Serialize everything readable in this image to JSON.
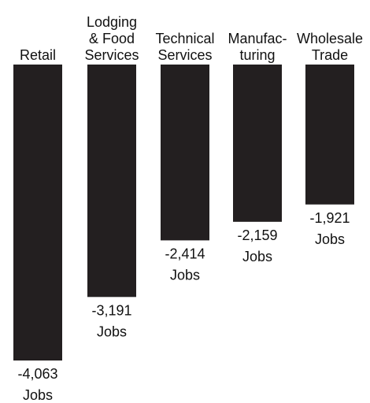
{
  "chart_data": {
    "type": "bar",
    "orientation": "vertical",
    "direction": "downward",
    "categories": [
      [
        "Retail"
      ],
      [
        "Lodging",
        "& Food",
        "Services"
      ],
      [
        "Technical",
        "Services"
      ],
      [
        "Manufac-",
        "turing"
      ],
      [
        "Wholesale",
        "Trade"
      ]
    ],
    "values": [
      -4063,
      -3191,
      -2414,
      -2159,
      -1921
    ],
    "value_labels": [
      "-4,063",
      "-3,191",
      "-2,414",
      "-2,159",
      "-1,921"
    ],
    "unit_label": "Jobs",
    "bar_color": "#231f20",
    "title": "",
    "xlabel": "",
    "ylabel": "",
    "ylim": [
      -4063,
      0
    ],
    "grid": false,
    "legend": "none"
  }
}
